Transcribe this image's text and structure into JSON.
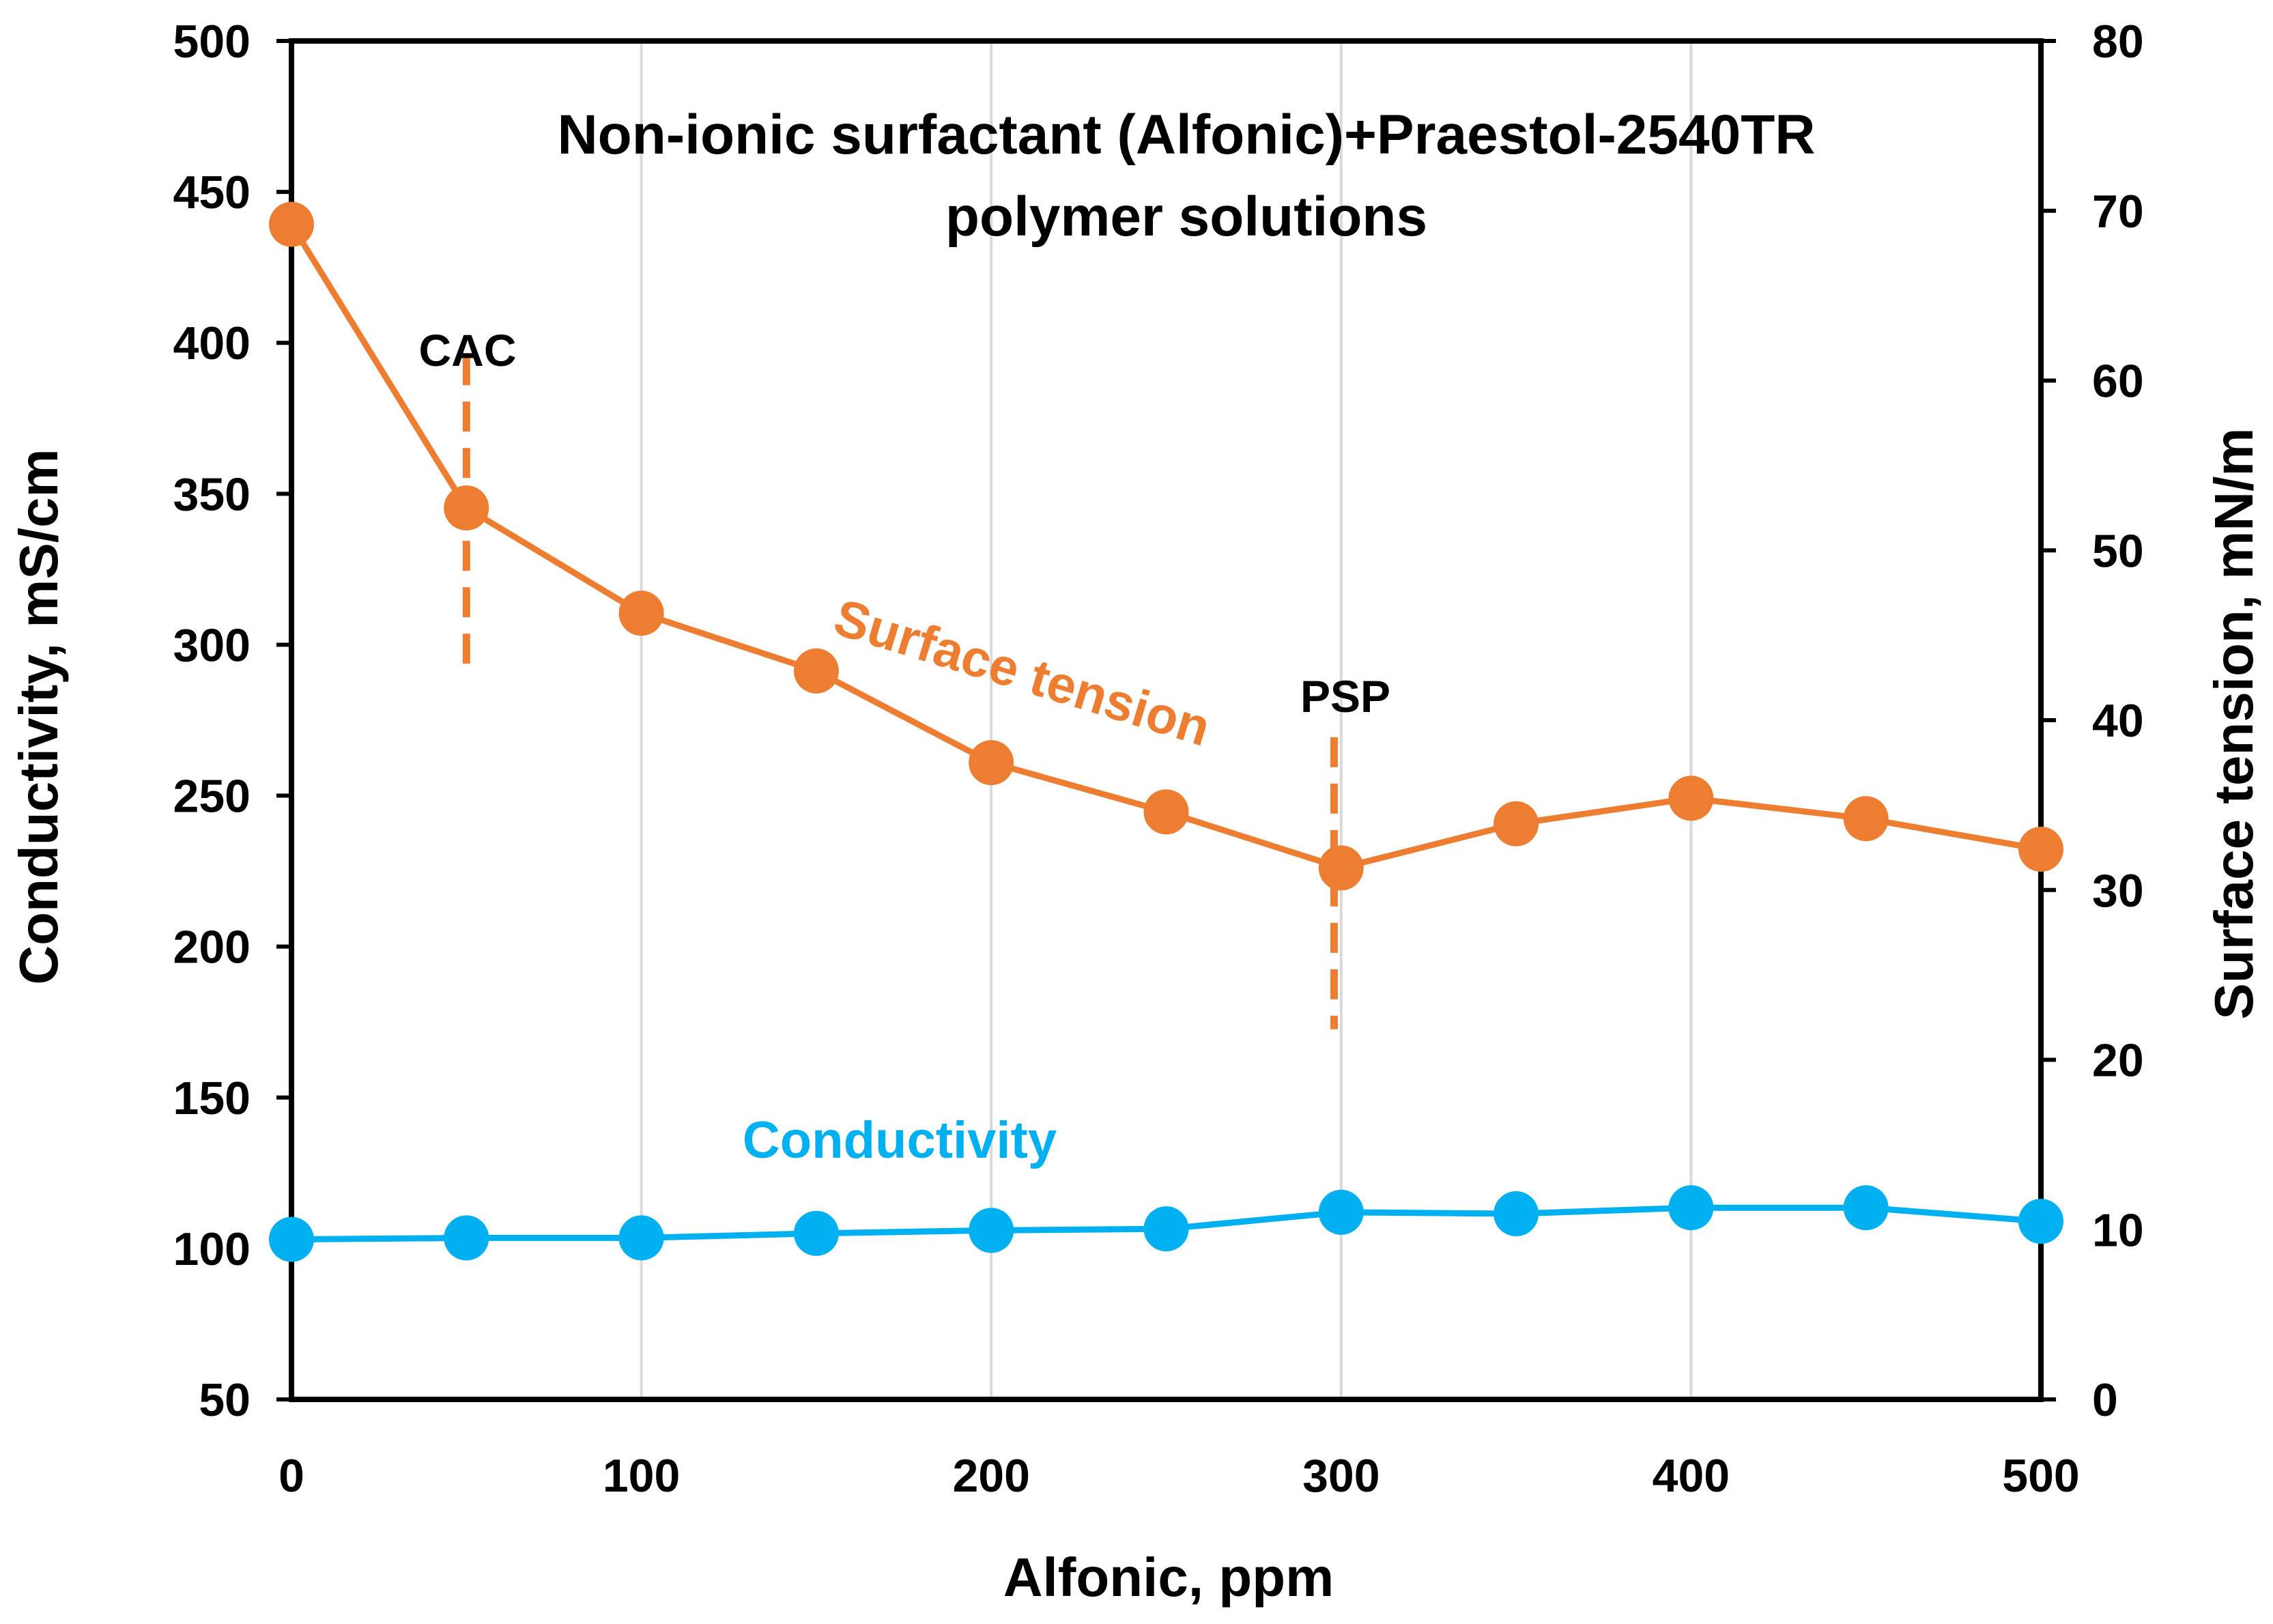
{
  "chart_data": {
    "type": "line",
    "title_lines": [
      "Non-ionic surfactant (Alfonic)+Praestol-2540TR",
      "polymer solutions"
    ],
    "xlabel": "Alfonic, ppm",
    "ylabel_left": "Conductivity, mS/cm",
    "ylabel_right": "Surface tension, mN/m",
    "xlim": [
      0,
      500
    ],
    "ylim_left": [
      50,
      500
    ],
    "ylim_right": [
      0,
      80
    ],
    "x_ticks": [
      "0",
      "100",
      "200",
      "300",
      "400",
      "500"
    ],
    "y_ticks_left": [
      "50",
      "100",
      "150",
      "200",
      "250",
      "300",
      "350",
      "400",
      "450",
      "500"
    ],
    "y_ticks_right": [
      "0",
      "10",
      "20",
      "30",
      "40",
      "50",
      "60",
      "70",
      "80"
    ],
    "grid": "vertical",
    "x": [
      0,
      50,
      100,
      150,
      200,
      250,
      300,
      350,
      400,
      450,
      500
    ],
    "series": [
      {
        "name": "Surface tension",
        "axis": "right",
        "color": "#ED7D31",
        "values": [
          69.2,
          52.5,
          46.3,
          42.9,
          37.5,
          34.6,
          31.3,
          33.9,
          35.4,
          34.2,
          32.4
        ]
      },
      {
        "name": "Conductivity",
        "axis": "left",
        "color": "#00B0F0",
        "values": [
          103,
          103.5,
          103.5,
          105,
          106,
          106.5,
          112,
          111.5,
          113.5,
          113.5,
          109
        ]
      }
    ],
    "annotations": [
      {
        "text": "CAC",
        "x": 50,
        "y_top": 61.5,
        "y_bottom": 42.7,
        "axis": "right",
        "color": "#ED7D31"
      },
      {
        "text": "PSP",
        "x": 298,
        "y_top": 39,
        "y_bottom": 21.8,
        "axis": "right",
        "color": "#ED7D31"
      }
    ]
  }
}
